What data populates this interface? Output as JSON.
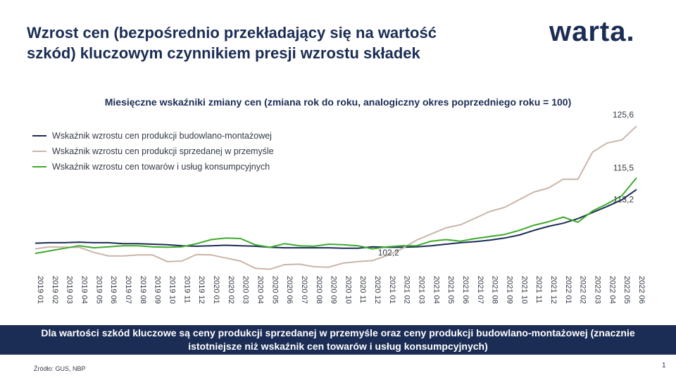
{
  "header": {
    "title_line1": "Wzrost cen (bezpośrednio przekładający się na wartość",
    "title_line2": "szkód) kluczowym czynnikiem presji wzrostu składek",
    "logo_text": "warta."
  },
  "footer": {
    "banner_line1": "Dla wartości szkód kluczowe są ceny produkcji sprzedanej w przemyśle oraz ceny produkcji budowlano-montażowej (znacznie",
    "banner_line2": "istotniejsze niż wskaźnik cen towarów i usług konsumpcyjnych)",
    "source": "Źródło: GUS, NBP",
    "page_number": "1"
  },
  "colors": {
    "navy": "#1b2d55",
    "tan": "#c9b5a9",
    "green": "#3eaa2c"
  },
  "chart_data": {
    "type": "line",
    "title": "Miesięczne wskaźniki zmiany cen (zmiana rok do roku, analogiczny okres poprzedniego roku = 100)",
    "xlabel": "",
    "ylabel": "",
    "ylim": [
      97,
      127
    ],
    "grid": false,
    "legend_position": "top-left",
    "x": [
      "2019 01",
      "2019 02",
      "2019 03",
      "2019 04",
      "2019 05",
      "2019 06",
      "2019 07",
      "2019 08",
      "2019 09",
      "2019 10",
      "2019 11",
      "2019 12",
      "2020 01",
      "2020 02",
      "2020 03",
      "2020 04",
      "2020 05",
      "2020 06",
      "2020 07",
      "2020 08",
      "2020 09",
      "2020 10",
      "2020 11",
      "2020 12",
      "2021 01",
      "2021 02",
      "2021 03",
      "2021 04",
      "2021 05",
      "2021 06",
      "2021 07",
      "2021 08",
      "2021 09",
      "2021 10",
      "2021 11",
      "2021 12",
      "2022 01",
      "2022 02",
      "2022 03",
      "2022 04",
      "2022 05",
      "2022 06"
    ],
    "series": [
      {
        "name": "Wskaźnik wzrostu cen produkcji budowlano-montażowej",
        "color": "#1b2d55",
        "values": [
          102.7,
          102.8,
          102.8,
          102.9,
          102.8,
          102.8,
          102.6,
          102.6,
          102.5,
          102.4,
          102.2,
          102.1,
          102.2,
          102.3,
          102.2,
          102.1,
          101.9,
          101.8,
          101.8,
          101.8,
          101.8,
          101.7,
          101.7,
          102.0,
          101.9,
          101.9,
          102.0,
          102.2,
          102.5,
          102.8,
          103.0,
          103.3,
          103.7,
          104.3,
          105.2,
          106.0,
          106.6,
          107.5,
          108.7,
          109.9,
          111.2,
          113.2
        ]
      },
      {
        "name": "Wskaźnik wzrostu cen produkcji sprzedanej  w przemyśle",
        "color": "#c9b5a9",
        "values": [
          101.6,
          102.0,
          101.9,
          101.9,
          100.9,
          100.2,
          100.2,
          100.4,
          100.4,
          99.1,
          99.2,
          100.5,
          100.4,
          99.8,
          99.2,
          97.8,
          97.6,
          98.5,
          98.6,
          98.1,
          98.0,
          98.8,
          99.1,
          99.3,
          100.3,
          101.6,
          103.3,
          104.5,
          105.7,
          106.3,
          107.6,
          108.9,
          109.7,
          111.2,
          112.7,
          113.5,
          115.2,
          115.2,
          120.5,
          122.3,
          122.9,
          125.6
        ]
      },
      {
        "name": "Wskaźnik wzrostu cen towarów  i usług konsumpcyjnych",
        "color": "#3eaa2c",
        "values": [
          100.7,
          101.2,
          101.7,
          102.2,
          101.8,
          102.0,
          102.2,
          102.2,
          102.0,
          101.9,
          102.0,
          102.6,
          103.4,
          103.7,
          103.6,
          102.4,
          101.9,
          102.6,
          102.2,
          102.1,
          102.5,
          102.4,
          102.2,
          101.6,
          102.0,
          102.2,
          102.2,
          103.1,
          103.4,
          103.1,
          103.6,
          104.0,
          104.4,
          105.2,
          106.2,
          106.9,
          107.8,
          106.8,
          109.0,
          110.4,
          112.0,
          115.5
        ]
      }
    ],
    "annotations": [
      {
        "text": "102,2",
        "x": "2021 02",
        "series": 2
      },
      {
        "text": "125,6",
        "x": "2022 06",
        "series": 1
      },
      {
        "text": "115,5",
        "x": "2022 06",
        "series": 2
      },
      {
        "text": "113,2",
        "x": "2022 06",
        "series": 0
      }
    ]
  }
}
